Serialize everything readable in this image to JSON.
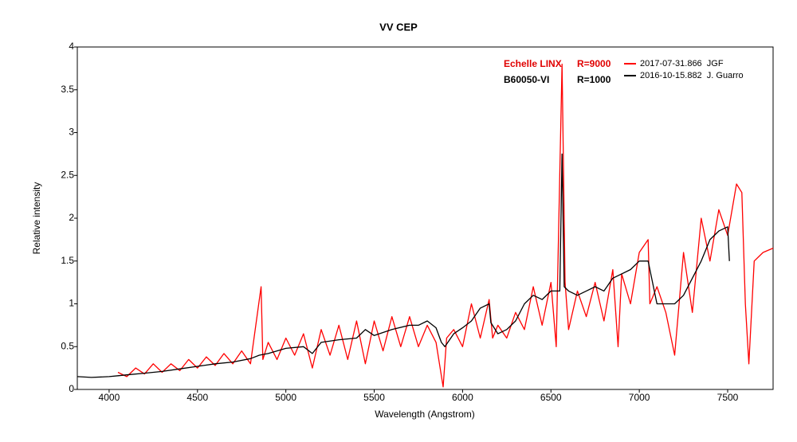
{
  "chart_data": {
    "type": "line",
    "title": "VV CEP",
    "x_label": "Wavelength (Angstrom)",
    "y_label": "Relative intensity",
    "xlim": [
      3820,
      7757
    ],
    "ylim": [
      0,
      4
    ],
    "xticks": [
      4000,
      4500,
      5000,
      5500,
      6000,
      6500,
      7000,
      7500
    ],
    "yticks": [
      0,
      0.5,
      1,
      1.5,
      2,
      2.5,
      3,
      3.5,
      4
    ],
    "grid": false,
    "annotations": [
      "Echelle LINX",
      "R=9000",
      "B60050-VI",
      "R=1000"
    ],
    "annotation_colors": [
      "#e00000",
      "#e00000",
      "#000000",
      "#000000"
    ],
    "series": [
      {
        "name": "2017-07-31.866  JGF",
        "color": "#ff0000",
        "x": [
          4050,
          4100,
          4150,
          4200,
          4250,
          4300,
          4350,
          4400,
          4450,
          4500,
          4550,
          4600,
          4650,
          4700,
          4750,
          4800,
          4860,
          4870,
          4900,
          4950,
          5000,
          5050,
          5100,
          5150,
          5200,
          5250,
          5300,
          5350,
          5400,
          5450,
          5500,
          5550,
          5600,
          5650,
          5700,
          5750,
          5800,
          5850,
          5890,
          5910,
          5950,
          6000,
          6050,
          6100,
          6150,
          6170,
          6200,
          6250,
          6300,
          6350,
          6400,
          6450,
          6500,
          6530,
          6563,
          6580,
          6600,
          6650,
          6700,
          6750,
          6800,
          6850,
          6880,
          6900,
          6950,
          7000,
          7050,
          7060,
          7100,
          7150,
          7200,
          7250,
          7300,
          7350,
          7400,
          7450,
          7500,
          7550,
          7580,
          7600,
          7620,
          7650,
          7700,
          7757
        ],
        "values": [
          0.2,
          0.15,
          0.25,
          0.18,
          0.3,
          0.2,
          0.3,
          0.22,
          0.35,
          0.25,
          0.38,
          0.28,
          0.42,
          0.3,
          0.45,
          0.3,
          1.2,
          0.35,
          0.55,
          0.35,
          0.6,
          0.4,
          0.65,
          0.25,
          0.7,
          0.4,
          0.75,
          0.35,
          0.8,
          0.3,
          0.8,
          0.45,
          0.85,
          0.5,
          0.85,
          0.5,
          0.75,
          0.55,
          0.03,
          0.6,
          0.7,
          0.5,
          1.0,
          0.6,
          1.05,
          0.6,
          0.75,
          0.6,
          0.9,
          0.7,
          1.2,
          0.75,
          1.25,
          0.5,
          3.8,
          1.25,
          0.7,
          1.15,
          0.85,
          1.25,
          0.8,
          1.4,
          0.5,
          1.35,
          1.0,
          1.6,
          1.75,
          1.0,
          1.2,
          0.9,
          0.4,
          1.6,
          0.9,
          2.0,
          1.5,
          2.1,
          1.8,
          2.4,
          2.3,
          1.0,
          0.3,
          1.5,
          1.6,
          1.65
        ]
      },
      {
        "name": "2016-10-15.882  J. Guarro",
        "color": "#000000",
        "x": [
          3820,
          3900,
          4000,
          4050,
          4100,
          4200,
          4300,
          4400,
          4500,
          4600,
          4700,
          4800,
          4850,
          4900,
          5000,
          5100,
          5150,
          5200,
          5300,
          5400,
          5450,
          5500,
          5600,
          5700,
          5750,
          5800,
          5850,
          5880,
          5900,
          5950,
          6000,
          6050,
          6100,
          6150,
          6160,
          6200,
          6250,
          6300,
          6350,
          6400,
          6450,
          6500,
          6550,
          6563,
          6575,
          6600,
          6650,
          6700,
          6750,
          6800,
          6850,
          6900,
          6950,
          7000,
          7050,
          7100,
          7150,
          7200,
          7250,
          7300,
          7350,
          7400,
          7450,
          7500,
          7510
        ],
        "values": [
          0.15,
          0.14,
          0.15,
          0.16,
          0.17,
          0.19,
          0.21,
          0.24,
          0.27,
          0.3,
          0.32,
          0.36,
          0.4,
          0.42,
          0.48,
          0.5,
          0.42,
          0.55,
          0.58,
          0.6,
          0.7,
          0.63,
          0.7,
          0.75,
          0.75,
          0.8,
          0.72,
          0.55,
          0.5,
          0.65,
          0.72,
          0.8,
          0.95,
          1.0,
          0.78,
          0.65,
          0.7,
          0.8,
          1.0,
          1.1,
          1.05,
          1.15,
          1.15,
          2.75,
          1.2,
          1.15,
          1.1,
          1.15,
          1.2,
          1.15,
          1.3,
          1.35,
          1.4,
          1.5,
          1.5,
          1.0,
          1.0,
          1.0,
          1.1,
          1.3,
          1.5,
          1.75,
          1.85,
          1.9,
          1.5
        ]
      }
    ]
  }
}
